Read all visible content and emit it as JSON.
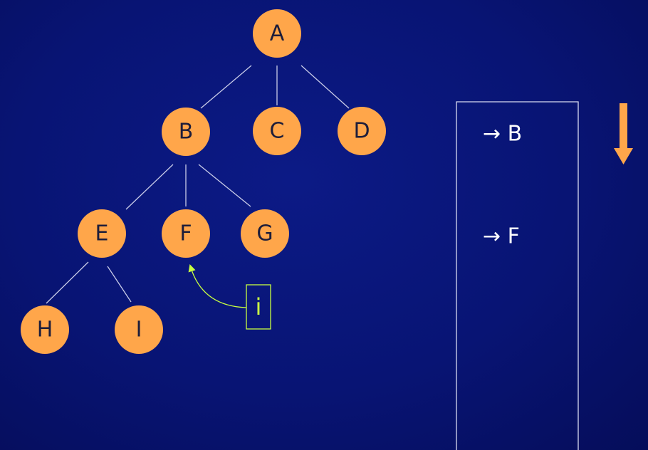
{
  "colors": {
    "background": "#081474",
    "node_fill": "#ffa64a",
    "node_text": "#1d1d3a",
    "edge": "#c9cce8",
    "stack_border": "#d8daf0",
    "stack_text": "#ffffff",
    "pointer": "#c8ff40",
    "arrow": "#ffa64a"
  },
  "tree": {
    "nodes": [
      {
        "id": "A",
        "label": "A"
      },
      {
        "id": "B",
        "label": "B"
      },
      {
        "id": "C",
        "label": "C"
      },
      {
        "id": "D",
        "label": "D"
      },
      {
        "id": "E",
        "label": "E"
      },
      {
        "id": "F",
        "label": "F"
      },
      {
        "id": "G",
        "label": "G"
      },
      {
        "id": "H",
        "label": "H"
      },
      {
        "id": "I",
        "label": "I"
      }
    ],
    "edges": [
      [
        "A",
        "B"
      ],
      [
        "A",
        "C"
      ],
      [
        "A",
        "D"
      ],
      [
        "B",
        "E"
      ],
      [
        "B",
        "F"
      ],
      [
        "B",
        "G"
      ],
      [
        "E",
        "H"
      ],
      [
        "E",
        "I"
      ]
    ]
  },
  "pointer": {
    "label": "i",
    "target": "F"
  },
  "stack": {
    "entries": [
      "→ B",
      "→ F"
    ]
  },
  "direction_arrow": {
    "icon": "down-arrow-icon",
    "direction": "down"
  }
}
